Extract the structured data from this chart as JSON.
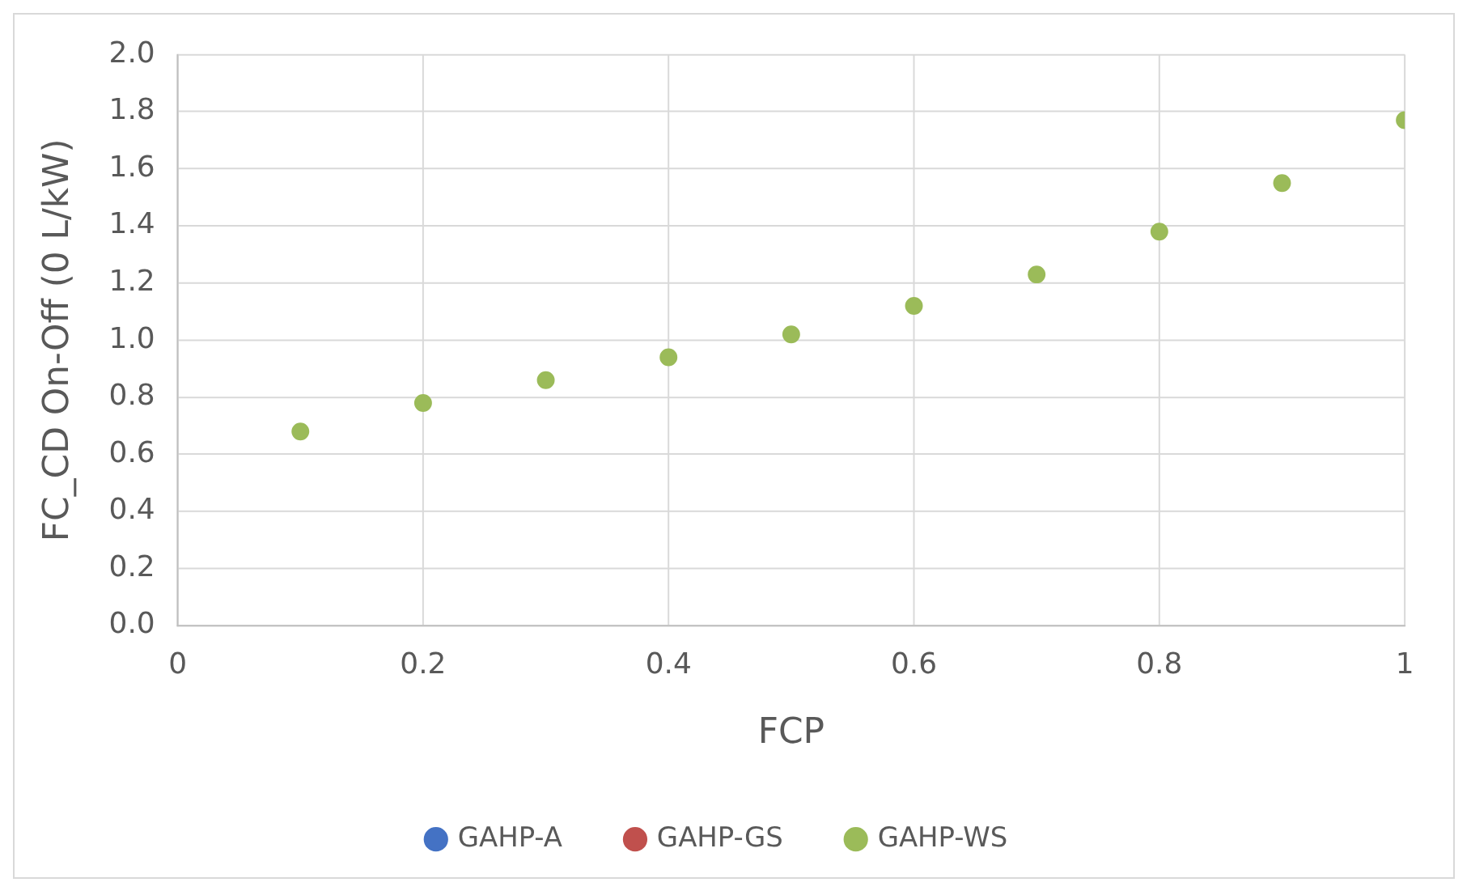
{
  "chart_data": {
    "type": "scatter",
    "xlabel": "FCP",
    "ylabel": "FC_CD On-Off (0 L/kW)",
    "x": [
      0.1,
      0.2,
      0.3,
      0.4,
      0.5,
      0.6,
      0.7,
      0.8,
      0.9,
      1.0
    ],
    "series": [
      {
        "name": "GAHP-A",
        "color": "#4472c4",
        "values": [
          null,
          null,
          null,
          null,
          null,
          null,
          null,
          null,
          null,
          null
        ]
      },
      {
        "name": "GAHP-GS",
        "color": "#c0504d",
        "values": [
          null,
          null,
          null,
          null,
          null,
          null,
          null,
          null,
          null,
          null
        ]
      },
      {
        "name": "GAHP-WS",
        "color": "#9bbb59",
        "values": [
          0.68,
          0.78,
          0.86,
          0.94,
          1.02,
          1.12,
          1.23,
          1.38,
          1.55,
          1.77
        ]
      }
    ],
    "xlim": [
      0,
      1
    ],
    "xticks": [
      0,
      0.2,
      0.4,
      0.6,
      0.8,
      1
    ],
    "ylim": [
      0,
      2
    ],
    "yticks": [
      {
        "value": 0,
        "label": "0.0"
      },
      {
        "value": 0.2,
        "label": "0.2"
      },
      {
        "value": 0.4,
        "label": "0.4"
      },
      {
        "value": 0.6,
        "label": "0.6"
      },
      {
        "value": 0.8,
        "label": "0.8"
      },
      {
        "value": 1,
        "label": "1.0"
      },
      {
        "value": 1.2,
        "label": "1.2"
      },
      {
        "value": 1.4,
        "label": "1.4"
      },
      {
        "value": 1.6,
        "label": "1.6"
      },
      {
        "value": 1.8,
        "label": "1.8"
      },
      {
        "value": 2,
        "label": "2.0"
      }
    ],
    "grid": true,
    "legend": "bottom",
    "marker": "circle"
  }
}
